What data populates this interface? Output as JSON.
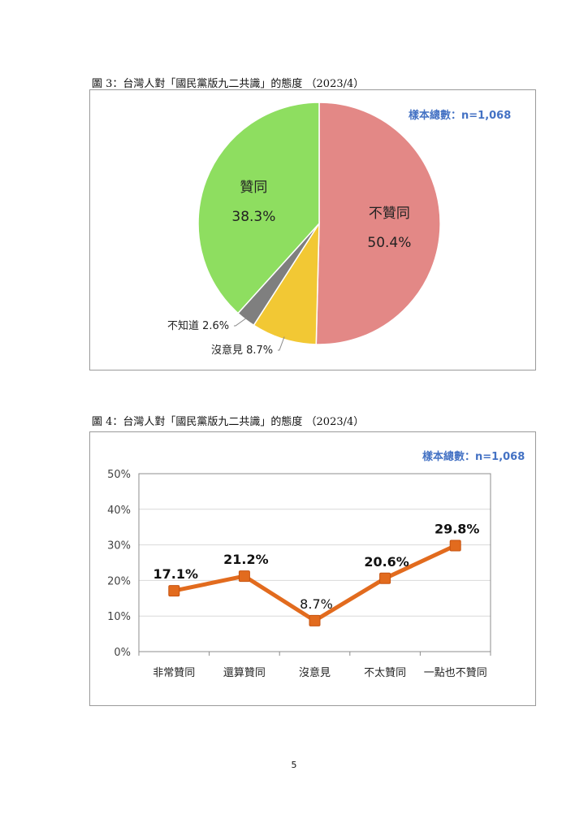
{
  "page_number": "5",
  "chart_data": [
    {
      "type": "pie",
      "caption": "圖 3：台灣人對「國民黨版九二共識」的態度 （2023/4）",
      "sample_note": "樣本總數：n=1,068",
      "slices": [
        {
          "label": "不贊同",
          "value": 50.4,
          "value_label": "50.4%",
          "color": "#e38886"
        },
        {
          "label": "沒意見",
          "value": 8.7,
          "value_label": "8.7%",
          "color": "#f2c834"
        },
        {
          "label": "不知道",
          "value": 2.6,
          "value_label": "2.6%",
          "color": "#7f7f7f"
        },
        {
          "label": "贊同",
          "value": 38.3,
          "value_label": "38.3%",
          "color": "#8ede60"
        }
      ]
    },
    {
      "type": "line",
      "caption": "圖 4：台灣人對「國民黨版九二共識」的態度 （2023/4）",
      "sample_note": "樣本總數：n=1,068",
      "categories": [
        "非常贊同",
        "還算贊同",
        "沒意見",
        "不太贊同",
        "一點也不贊同"
      ],
      "series": [
        {
          "values": [
            17.1,
            21.2,
            8.7,
            20.6,
            29.8
          ],
          "value_labels": [
            "17.1%",
            "21.2%",
            "8.7%",
            "20.6%",
            "29.8%"
          ],
          "color": "#e26b1e"
        }
      ],
      "yticks": [
        "0%",
        "10%",
        "20%",
        "30%",
        "40%",
        "50%"
      ],
      "ylim": [
        0,
        50
      ],
      "grid": true
    }
  ]
}
